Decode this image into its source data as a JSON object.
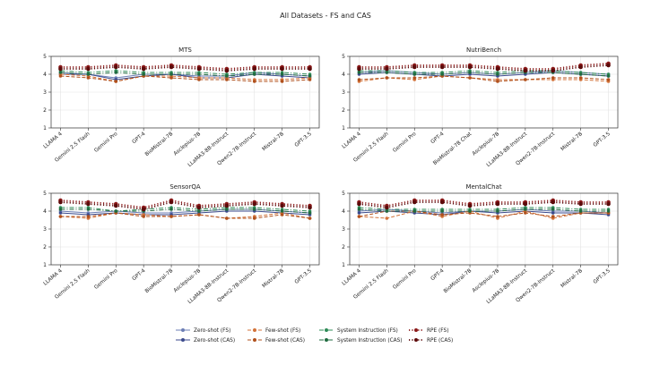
{
  "figure_title": "All Datasets - FS and CAS",
  "colors": {
    "zero_fs": "#6c7eb5",
    "zero_cas": "#3b4a8c",
    "few_fs": "#d3733a",
    "few_cas": "#b0501c",
    "sys_fs": "#2e8b57",
    "sys_cas": "#1f6b3f",
    "rpe_fs": "#8b1a1a",
    "rpe_cas": "#5c0a0a"
  },
  "legend": [
    {
      "label": "Zero-shot (FS)",
      "key": "zero_fs",
      "dash": "solid"
    },
    {
      "label": "Zero-shot (CAS)",
      "key": "zero_cas",
      "dash": "solid"
    },
    {
      "label": "Few-shot (FS)",
      "key": "few_fs",
      "dash": "dashed"
    },
    {
      "label": "Few-shot (CAS)",
      "key": "few_cas",
      "dash": "dashed"
    },
    {
      "label": "System Instruction (FS)",
      "key": "sys_fs",
      "dash": "dashdot"
    },
    {
      "label": "System Instruction (CAS)",
      "key": "sys_cas",
      "dash": "dashdot"
    },
    {
      "label": "RPE (FS)",
      "key": "rpe_fs",
      "dash": "dotted"
    },
    {
      "label": "RPE (CAS)",
      "key": "rpe_cas",
      "dash": "dotted"
    }
  ],
  "chart_data": [
    {
      "type": "line",
      "title": "MTS",
      "categories": [
        "LLAMA 4",
        "Gemini 2.5 Flash",
        "Gemini Pro",
        "GPT-4",
        "BioMistral-7B",
        "Asclepius-7B",
        "LLaMA3-8B-Instruct",
        "Qwen2-7B-Instruct",
        "Mistral-7B",
        "GPT-3.5"
      ],
      "ylim": [
        1,
        5
      ],
      "yticks": [
        1,
        2,
        3,
        4,
        5
      ],
      "series": [
        {
          "name": "Zero-shot (FS)",
          "values": [
            4.1,
            4.0,
            3.8,
            4.0,
            4.0,
            3.9,
            3.9,
            4.1,
            4.0,
            3.9
          ]
        },
        {
          "name": "Zero-shot (CAS)",
          "values": [
            4.0,
            4.0,
            3.7,
            3.9,
            4.0,
            3.8,
            3.8,
            4.0,
            3.9,
            3.8
          ]
        },
        {
          "name": "Few-shot (FS)",
          "values": [
            4.0,
            3.9,
            3.6,
            3.9,
            3.9,
            3.8,
            3.8,
            3.7,
            3.7,
            3.8
          ]
        },
        {
          "name": "Few-shot (CAS)",
          "values": [
            3.9,
            3.8,
            3.6,
            3.9,
            3.8,
            3.7,
            3.7,
            3.6,
            3.6,
            3.7
          ]
        },
        {
          "name": "System Instruction (FS)",
          "values": [
            4.2,
            4.1,
            4.2,
            4.1,
            4.1,
            4.1,
            4.0,
            4.1,
            4.1,
            4.0
          ]
        },
        {
          "name": "System Instruction (CAS)",
          "values": [
            4.1,
            4.0,
            4.1,
            4.0,
            4.0,
            4.0,
            3.9,
            4.0,
            4.0,
            3.9
          ]
        },
        {
          "name": "RPE (FS)",
          "values": [
            4.4,
            4.4,
            4.5,
            4.4,
            4.5,
            4.4,
            4.3,
            4.4,
            4.4,
            4.4
          ]
        },
        {
          "name": "RPE (CAS)",
          "values": [
            4.3,
            4.3,
            4.4,
            4.3,
            4.4,
            4.3,
            4.2,
            4.3,
            4.3,
            4.3
          ]
        }
      ]
    },
    {
      "type": "line",
      "title": "NutriBench",
      "categories": [
        "LLAMA 4",
        "Gemini 2.5 Flash",
        "Gemini Pro",
        "GPT-4",
        "BioMistral-7B Chat",
        "Asclepius-7B",
        "LLaMA3-8B-Instruct",
        "Qwen2-7B-Instruct",
        "Mistral-7B",
        "GPT-3.5"
      ],
      "ylim": [
        1,
        5
      ],
      "yticks": [
        1,
        2,
        3,
        4,
        5
      ],
      "series": [
        {
          "name": "Zero-shot (FS)",
          "values": [
            4.1,
            4.2,
            4.1,
            4.0,
            4.1,
            4.0,
            4.1,
            4.2,
            4.1,
            4.0
          ]
        },
        {
          "name": "Zero-shot (CAS)",
          "values": [
            4.0,
            4.1,
            4.0,
            3.9,
            4.0,
            3.9,
            4.0,
            4.1,
            4.0,
            3.9
          ]
        },
        {
          "name": "Few-shot (FS)",
          "values": [
            3.6,
            3.8,
            3.7,
            3.9,
            3.8,
            3.7,
            3.7,
            3.7,
            3.7,
            3.6
          ]
        },
        {
          "name": "Few-shot (CAS)",
          "values": [
            3.7,
            3.8,
            3.8,
            3.9,
            3.8,
            3.6,
            3.7,
            3.8,
            3.8,
            3.7
          ]
        },
        {
          "name": "System Instruction (FS)",
          "values": [
            4.2,
            4.2,
            4.1,
            4.1,
            4.2,
            4.1,
            4.2,
            4.2,
            4.1,
            4.0
          ]
        },
        {
          "name": "System Instruction (CAS)",
          "values": [
            4.1,
            4.1,
            4.0,
            4.0,
            4.1,
            4.0,
            4.1,
            4.1,
            4.0,
            3.9
          ]
        },
        {
          "name": "RPE (FS)",
          "values": [
            4.4,
            4.4,
            4.5,
            4.5,
            4.5,
            4.4,
            4.3,
            4.3,
            4.5,
            4.6
          ]
        },
        {
          "name": "RPE (CAS)",
          "values": [
            4.3,
            4.3,
            4.4,
            4.4,
            4.4,
            4.3,
            4.2,
            4.2,
            4.4,
            4.5
          ]
        }
      ]
    },
    {
      "type": "line",
      "title": "SensorQA",
      "categories": [
        "LLAMA 4",
        "Gemini 2.5 Flash",
        "Gemini Pro",
        "GPT-4",
        "BioMistral-7B",
        "Asclepius-7B",
        "LLaMA3-8B-Instruct",
        "Qwen2-7B-Instruct",
        "Mistral-7B",
        "GPT-3.5"
      ],
      "ylim": [
        1,
        5
      ],
      "yticks": [
        1,
        2,
        3,
        4,
        5
      ],
      "series": [
        {
          "name": "Zero-shot (FS)",
          "values": [
            4.0,
            3.9,
            4.0,
            3.9,
            3.9,
            4.0,
            4.1,
            4.1,
            4.0,
            3.9
          ]
        },
        {
          "name": "Zero-shot (CAS)",
          "values": [
            3.9,
            3.8,
            3.9,
            3.8,
            3.8,
            3.9,
            4.0,
            4.0,
            3.9,
            3.8
          ]
        },
        {
          "name": "Few-shot (FS)",
          "values": [
            3.7,
            3.6,
            3.9,
            3.8,
            3.7,
            3.8,
            3.6,
            3.7,
            3.9,
            3.6
          ]
        },
        {
          "name": "Few-shot (CAS)",
          "values": [
            3.7,
            3.7,
            3.9,
            3.7,
            3.7,
            3.8,
            3.6,
            3.6,
            3.8,
            3.6
          ]
        },
        {
          "name": "System Instruction (FS)",
          "values": [
            4.2,
            4.2,
            4.0,
            4.1,
            4.2,
            4.1,
            4.2,
            4.2,
            4.1,
            4.0
          ]
        },
        {
          "name": "System Instruction (CAS)",
          "values": [
            4.1,
            4.1,
            4.0,
            4.0,
            4.1,
            4.0,
            4.1,
            4.1,
            4.0,
            3.9
          ]
        },
        {
          "name": "RPE (FS)",
          "values": [
            4.6,
            4.5,
            4.4,
            4.2,
            4.6,
            4.3,
            4.4,
            4.5,
            4.4,
            4.3
          ]
        },
        {
          "name": "RPE (CAS)",
          "values": [
            4.5,
            4.4,
            4.3,
            4.1,
            4.5,
            4.2,
            4.3,
            4.4,
            4.3,
            4.2
          ]
        }
      ]
    },
    {
      "type": "line",
      "title": "MentalChat",
      "categories": [
        "LLAMA 4",
        "Gemini 2.5 Flash",
        "Gemini Pro",
        "GPT-4",
        "BioMistral-7B",
        "Asclepius-7B",
        "LLaMA3-8B-Instruct",
        "Qwen2-7B-Instruct",
        "Mistral-7B",
        "GPT-3.5"
      ],
      "ylim": [
        1,
        5
      ],
      "yticks": [
        1,
        2,
        3,
        4,
        5
      ],
      "series": [
        {
          "name": "Zero-shot (FS)",
          "values": [
            4.0,
            4.1,
            4.0,
            3.9,
            4.0,
            4.0,
            4.1,
            4.0,
            4.0,
            3.9
          ]
        },
        {
          "name": "Zero-shot (CAS)",
          "values": [
            3.9,
            4.0,
            3.9,
            3.8,
            4.0,
            3.9,
            4.0,
            3.9,
            3.9,
            3.8
          ]
        },
        {
          "name": "Few-shot (FS)",
          "values": [
            3.7,
            3.6,
            4.0,
            3.7,
            4.0,
            3.6,
            4.0,
            3.6,
            3.9,
            3.9
          ]
        },
        {
          "name": "Few-shot (CAS)",
          "values": [
            3.7,
            4.0,
            4.0,
            3.8,
            3.9,
            3.7,
            3.9,
            3.7,
            3.9,
            3.9
          ]
        },
        {
          "name": "System Instruction (FS)",
          "values": [
            4.2,
            4.1,
            4.1,
            4.1,
            4.1,
            4.1,
            4.2,
            4.2,
            4.1,
            4.1
          ]
        },
        {
          "name": "System Instruction (CAS)",
          "values": [
            4.1,
            4.0,
            4.0,
            4.0,
            4.0,
            4.0,
            4.1,
            4.1,
            4.0,
            4.0
          ]
        },
        {
          "name": "RPE (FS)",
          "values": [
            4.5,
            4.3,
            4.6,
            4.6,
            4.4,
            4.5,
            4.5,
            4.6,
            4.5,
            4.5
          ]
        },
        {
          "name": "RPE (CAS)",
          "values": [
            4.4,
            4.2,
            4.5,
            4.5,
            4.3,
            4.4,
            4.4,
            4.5,
            4.4,
            4.4
          ]
        }
      ]
    }
  ]
}
